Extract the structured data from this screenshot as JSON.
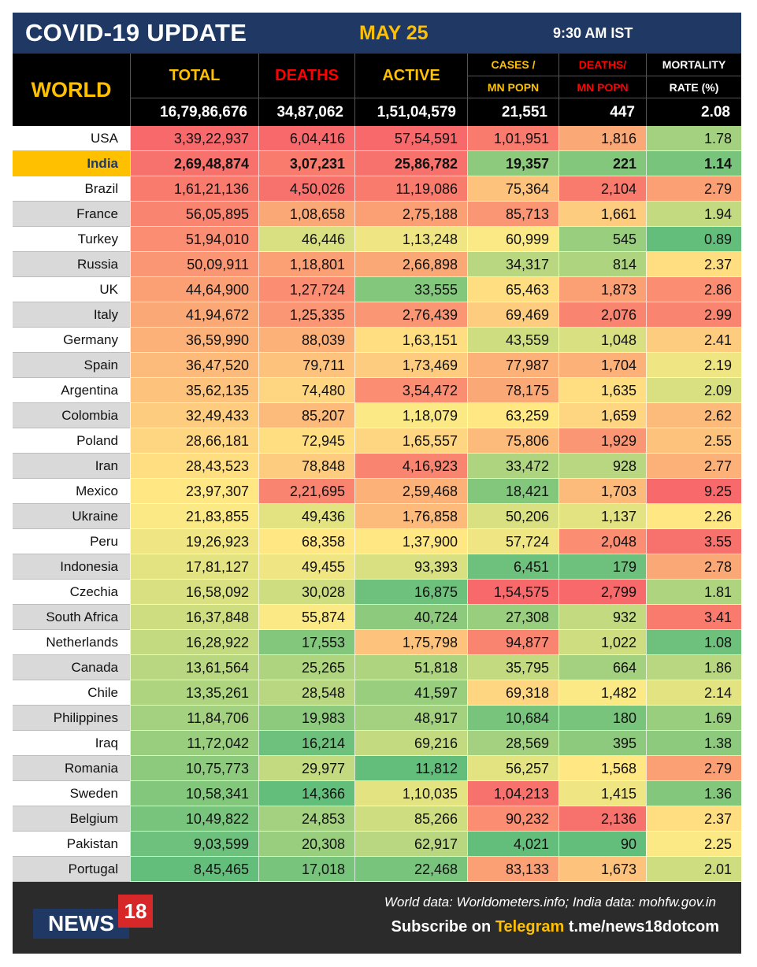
{
  "header": {
    "title": "COVID-19 UPDATE",
    "date": "MAY 25",
    "time": "9:30 AM IST"
  },
  "columns": {
    "world": "WORLD",
    "total": "TOTAL",
    "deaths": "DEATHS",
    "active": "ACTIVE",
    "cases_per_mn_1": "CASES /",
    "cases_per_mn_2": "MN POPN",
    "deaths_per_mn_1": "DEATHS/",
    "deaths_per_mn_2": "MN POPN",
    "mortality_1": "MORTALITY",
    "mortality_2": "RATE (%)"
  },
  "world_totals": {
    "total": "16,79,86,676",
    "deaths": "34,87,062",
    "active": "1,51,04,579",
    "cases_per_mn": "21,551",
    "deaths_per_mn": "447",
    "mortality": "2.08"
  },
  "colors": {
    "title_bg": "#1f3864",
    "accent_yellow": "#ffc000",
    "deaths_red": "#ff0000",
    "header_black": "#000000",
    "footer_bg": "#2b2b2b",
    "logo_red": "#d62828"
  },
  "rows": [
    {
      "country": "USA",
      "total": "3,39,22,937",
      "deaths": "6,04,416",
      "active": "57,54,591",
      "cases_per_mn": "1,01,951",
      "deaths_per_mn": "1,816",
      "mortality": "1.78"
    },
    {
      "country": "India",
      "total": "2,69,48,874",
      "deaths": "3,07,231",
      "active": "25,86,782",
      "cases_per_mn": "19,357",
      "deaths_per_mn": "221",
      "mortality": "1.14"
    },
    {
      "country": "Brazil",
      "total": "1,61,21,136",
      "deaths": "4,50,026",
      "active": "11,19,086",
      "cases_per_mn": "75,364",
      "deaths_per_mn": "2,104",
      "mortality": "2.79"
    },
    {
      "country": "France",
      "total": "56,05,895",
      "deaths": "1,08,658",
      "active": "2,75,188",
      "cases_per_mn": "85,713",
      "deaths_per_mn": "1,661",
      "mortality": "1.94"
    },
    {
      "country": "Turkey",
      "total": "51,94,010",
      "deaths": "46,446",
      "active": "1,13,248",
      "cases_per_mn": "60,999",
      "deaths_per_mn": "545",
      "mortality": "0.89"
    },
    {
      "country": "Russia",
      "total": "50,09,911",
      "deaths": "1,18,801",
      "active": "2,66,898",
      "cases_per_mn": "34,317",
      "deaths_per_mn": "814",
      "mortality": "2.37"
    },
    {
      "country": "UK",
      "total": "44,64,900",
      "deaths": "1,27,724",
      "active": "33,555",
      "cases_per_mn": "65,463",
      "deaths_per_mn": "1,873",
      "mortality": "2.86"
    },
    {
      "country": "Italy",
      "total": "41,94,672",
      "deaths": "1,25,335",
      "active": "2,76,439",
      "cases_per_mn": "69,469",
      "deaths_per_mn": "2,076",
      "mortality": "2.99"
    },
    {
      "country": "Germany",
      "total": "36,59,990",
      "deaths": "88,039",
      "active": "1,63,151",
      "cases_per_mn": "43,559",
      "deaths_per_mn": "1,048",
      "mortality": "2.41"
    },
    {
      "country": "Spain",
      "total": "36,47,520",
      "deaths": "79,711",
      "active": "1,73,469",
      "cases_per_mn": "77,987",
      "deaths_per_mn": "1,704",
      "mortality": "2.19"
    },
    {
      "country": "Argentina",
      "total": "35,62,135",
      "deaths": "74,480",
      "active": "3,54,472",
      "cases_per_mn": "78,175",
      "deaths_per_mn": "1,635",
      "mortality": "2.09"
    },
    {
      "country": "Colombia",
      "total": "32,49,433",
      "deaths": "85,207",
      "active": "1,18,079",
      "cases_per_mn": "63,259",
      "deaths_per_mn": "1,659",
      "mortality": "2.62"
    },
    {
      "country": "Poland",
      "total": "28,66,181",
      "deaths": "72,945",
      "active": "1,65,557",
      "cases_per_mn": "75,806",
      "deaths_per_mn": "1,929",
      "mortality": "2.55"
    },
    {
      "country": "Iran",
      "total": "28,43,523",
      "deaths": "78,848",
      "active": "4,16,923",
      "cases_per_mn": "33,472",
      "deaths_per_mn": "928",
      "mortality": "2.77"
    },
    {
      "country": "Mexico",
      "total": "23,97,307",
      "deaths": "2,21,695",
      "active": "2,59,468",
      "cases_per_mn": "18,421",
      "deaths_per_mn": "1,703",
      "mortality": "9.25"
    },
    {
      "country": "Ukraine",
      "total": "21,83,855",
      "deaths": "49,436",
      "active": "1,76,858",
      "cases_per_mn": "50,206",
      "deaths_per_mn": "1,137",
      "mortality": "2.26"
    },
    {
      "country": "Peru",
      "total": "19,26,923",
      "deaths": "68,358",
      "active": "1,37,900",
      "cases_per_mn": "57,724",
      "deaths_per_mn": "2,048",
      "mortality": "3.55"
    },
    {
      "country": "Indonesia",
      "total": "17,81,127",
      "deaths": "49,455",
      "active": "93,393",
      "cases_per_mn": "6,451",
      "deaths_per_mn": "179",
      "mortality": "2.78"
    },
    {
      "country": "Czechia",
      "total": "16,58,092",
      "deaths": "30,028",
      "active": "16,875",
      "cases_per_mn": "1,54,575",
      "deaths_per_mn": "2,799",
      "mortality": "1.81"
    },
    {
      "country": "South Africa",
      "total": "16,37,848",
      "deaths": "55,874",
      "active": "40,724",
      "cases_per_mn": "27,308",
      "deaths_per_mn": "932",
      "mortality": "3.41"
    },
    {
      "country": "Netherlands",
      "total": "16,28,922",
      "deaths": "17,553",
      "active": "1,75,798",
      "cases_per_mn": "94,877",
      "deaths_per_mn": "1,022",
      "mortality": "1.08"
    },
    {
      "country": "Canada",
      "total": "13,61,564",
      "deaths": "25,265",
      "active": "51,818",
      "cases_per_mn": "35,795",
      "deaths_per_mn": "664",
      "mortality": "1.86"
    },
    {
      "country": "Chile",
      "total": "13,35,261",
      "deaths": "28,548",
      "active": "41,597",
      "cases_per_mn": "69,318",
      "deaths_per_mn": "1,482",
      "mortality": "2.14"
    },
    {
      "country": "Philippines",
      "total": "11,84,706",
      "deaths": "19,983",
      "active": "48,917",
      "cases_per_mn": "10,684",
      "deaths_per_mn": "180",
      "mortality": "1.69"
    },
    {
      "country": "Iraq",
      "total": "11,72,042",
      "deaths": "16,214",
      "active": "69,216",
      "cases_per_mn": "28,569",
      "deaths_per_mn": "395",
      "mortality": "1.38"
    },
    {
      "country": "Romania",
      "total": "10,75,773",
      "deaths": "29,977",
      "active": "11,812",
      "cases_per_mn": "56,257",
      "deaths_per_mn": "1,568",
      "mortality": "2.79"
    },
    {
      "country": "Sweden",
      "total": "10,58,341",
      "deaths": "14,366",
      "active": "1,10,035",
      "cases_per_mn": "1,04,213",
      "deaths_per_mn": "1,415",
      "mortality": "1.36"
    },
    {
      "country": "Belgium",
      "total": "10,49,822",
      "deaths": "24,853",
      "active": "85,266",
      "cases_per_mn": "90,232",
      "deaths_per_mn": "2,136",
      "mortality": "2.37"
    },
    {
      "country": "Pakistan",
      "total": "9,03,599",
      "deaths": "20,308",
      "active": "62,917",
      "cases_per_mn": "4,021",
      "deaths_per_mn": "90",
      "mortality": "2.25"
    },
    {
      "country": "Portugal",
      "total": "8,45,465",
      "deaths": "17,018",
      "active": "22,468",
      "cases_per_mn": "83,133",
      "deaths_per_mn": "1,673",
      "mortality": "2.01"
    }
  ],
  "footer": {
    "source": "World data: Worldometers.info; India data: mohfw.gov.in",
    "subscribe_prefix": "Subscribe on",
    "subscribe_app": "Telegram",
    "subscribe_link": "t.me/news18dotcom",
    "logo_text": "NEWS",
    "logo_number": "18"
  }
}
